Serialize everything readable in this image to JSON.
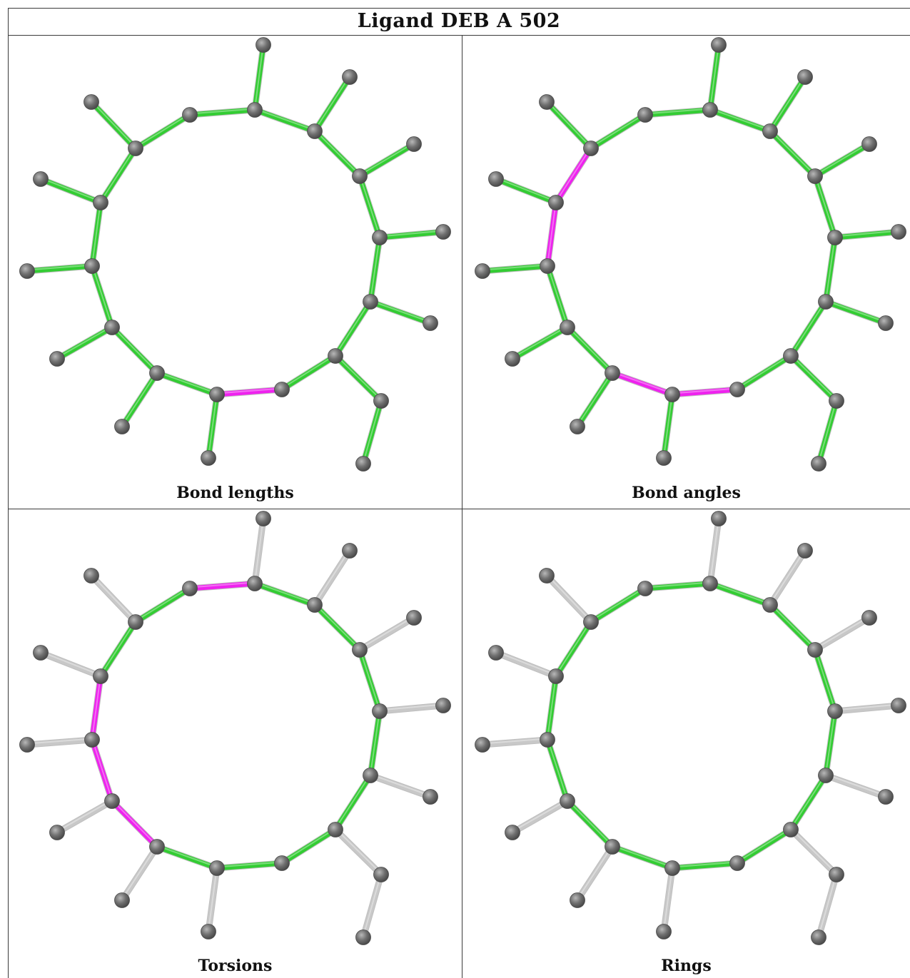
{
  "title": "Ligand DEB A 502",
  "panels": [
    {
      "caption": "Bond lengths"
    },
    {
      "caption": "Bond angles"
    },
    {
      "caption": "Torsions"
    },
    {
      "caption": "Rings"
    }
  ],
  "colors": {
    "ring_bond": "#33cc33",
    "highlight_bond": "#ee22ee",
    "side_bond_plain": "#c8c8c8",
    "atom": "#707070"
  }
}
